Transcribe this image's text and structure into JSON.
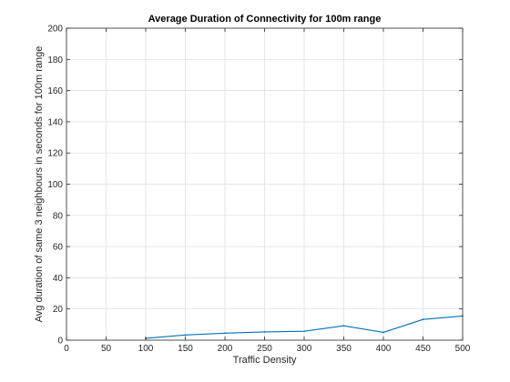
{
  "chart_data": {
    "type": "line",
    "title": "Average Duration of Connectivity for 100m range",
    "xlabel": "Traffic Density",
    "ylabel": "Avg duration of same 3 neighbours in seconds for 100m range",
    "xlim": [
      0,
      500
    ],
    "ylim": [
      0,
      200
    ],
    "xticks": [
      0,
      50,
      100,
      150,
      200,
      250,
      300,
      350,
      400,
      450,
      500
    ],
    "yticks": [
      0,
      20,
      40,
      60,
      80,
      100,
      120,
      140,
      160,
      180,
      200
    ],
    "grid": true,
    "series": [
      {
        "color": "#0072BD",
        "x": [
          100,
          150,
          200,
          250,
          300,
          350,
          400,
          450,
          500
        ],
        "y": [
          1.2,
          3.3,
          4.5,
          5.3,
          5.7,
          9.2,
          5.0,
          13.3,
          15.5
        ]
      }
    ]
  }
}
